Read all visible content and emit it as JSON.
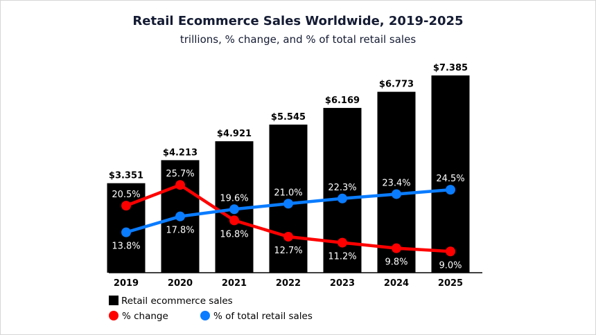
{
  "chart_data": {
    "type": "bar",
    "title": "Retail Ecommerce Sales Worldwide, 2019-2025",
    "subtitle": "trillions, % change, and % of total retail sales",
    "xlabel": "",
    "ylabel": "",
    "categories": [
      "2019",
      "2020",
      "2021",
      "2022",
      "2023",
      "2024",
      "2025"
    ],
    "grid": false,
    "legend_position": "bottom-left",
    "series": [
      {
        "name": "Retail ecommerce sales",
        "kind": "bar",
        "color": "#000000",
        "values": [
          3.351,
          4.213,
          4.921,
          5.545,
          6.169,
          6.773,
          7.385
        ],
        "labels": [
          "$3.351",
          "$4.213",
          "$4.921",
          "$5.545",
          "$6.169",
          "$6.773",
          "$7.385"
        ]
      },
      {
        "name": "% change",
        "kind": "line",
        "color": "#ff0000",
        "values": [
          20.5,
          25.7,
          16.8,
          12.7,
          11.2,
          9.8,
          9.0
        ],
        "labels": [
          "20.5%",
          "25.7%",
          "16.8%",
          "12.7%",
          "11.2%",
          "9.8%",
          "9.0%"
        ],
        "label_side": [
          "above",
          "above",
          "below",
          "below",
          "below",
          "below",
          "below"
        ]
      },
      {
        "name": "% of total retail sales",
        "kind": "line",
        "color": "#0a7cff",
        "values": [
          13.8,
          17.8,
          19.6,
          21.0,
          22.3,
          23.4,
          24.5
        ],
        "labels": [
          "13.8%",
          "17.8%",
          "19.6%",
          "21.0%",
          "22.3%",
          "23.4%",
          "24.5%"
        ],
        "label_side": [
          "below",
          "below",
          "above",
          "above",
          "above",
          "above",
          "above"
        ]
      }
    ],
    "bar_ylim": [
      0,
      7.385
    ],
    "line_ylim": [
      0,
      30
    ]
  }
}
